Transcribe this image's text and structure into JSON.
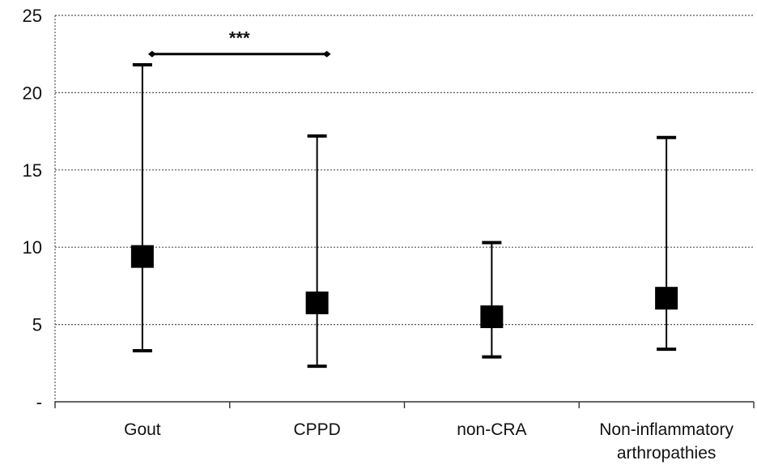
{
  "chart_data": {
    "type": "scatter",
    "subtype": "median-with-range",
    "title": "",
    "xlabel": "",
    "ylabel": "",
    "categories": [
      "Gout",
      "CPPD",
      "non-CRA",
      "Non-inflammatory arthropathies"
    ],
    "category_lines": [
      [
        "Gout"
      ],
      [
        "CPPD"
      ],
      [
        "non-CRA"
      ],
      [
        "Non-inflammatory",
        "arthropathies"
      ]
    ],
    "series": [
      {
        "center": [
          9.4,
          6.4,
          5.5,
          6.7
        ],
        "low": [
          3.3,
          2.3,
          2.9,
          3.4
        ],
        "high": [
          21.8,
          17.2,
          10.3,
          17.1
        ]
      }
    ],
    "ylim": [
      0,
      25
    ],
    "yticks": [
      0,
      5,
      10,
      15,
      20,
      25
    ],
    "ytick_labels": [
      "-",
      "5",
      "10",
      "15",
      "20",
      "25"
    ],
    "grid": true,
    "significance": {
      "from": "Gout",
      "to": "CPPD",
      "y": 22.5,
      "label": "***"
    },
    "colors": {
      "marker": "#000000",
      "line": "#000000",
      "grid": "#555555"
    }
  }
}
